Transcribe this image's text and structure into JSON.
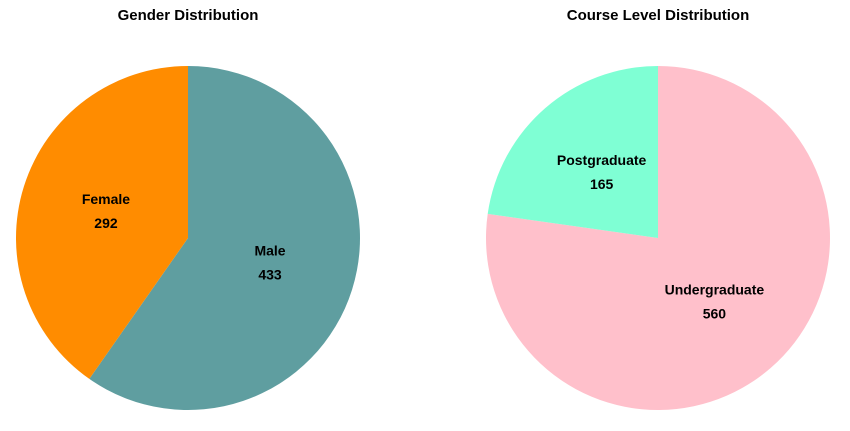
{
  "chart_data": [
    {
      "type": "pie",
      "title": "Gender Distribution",
      "categories": [
        "Male",
        "Female"
      ],
      "values": [
        433,
        292
      ],
      "colors": [
        "#5f9ea0",
        "#ff8c00"
      ]
    },
    {
      "type": "pie",
      "title": "Course Level Distribution",
      "categories": [
        "Undergraduate",
        "Postgraduate"
      ],
      "values": [
        560,
        165
      ],
      "colors": [
        "#ffc0cb",
        "#7fffd4"
      ]
    }
  ]
}
